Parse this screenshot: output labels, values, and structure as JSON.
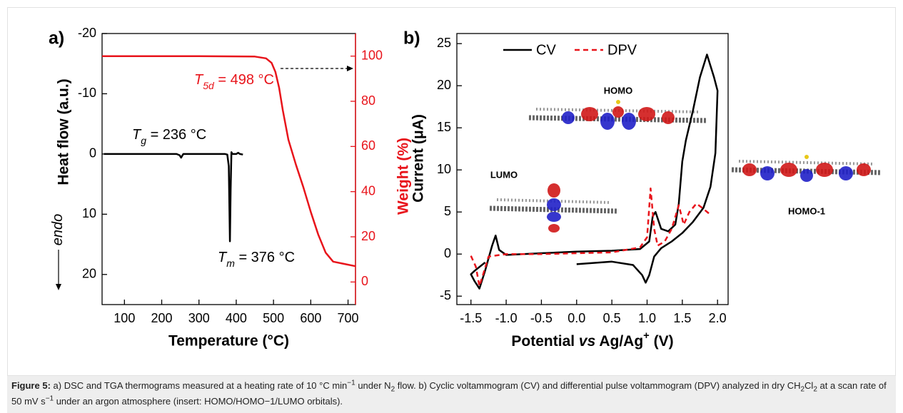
{
  "chart_data": [
    {
      "type": "line",
      "panel": "a)",
      "x_label": "Temperature (°C)",
      "y_label": "Heat flow (a.u.)",
      "y2_label": "Weight (%)",
      "y2_color": "#e8141b",
      "xlim": [
        40,
        720
      ],
      "xticks": [
        100,
        200,
        300,
        400,
        500,
        600,
        700
      ],
      "ylim": [
        25,
        -20
      ],
      "yticks": [
        -20,
        -10,
        0,
        10,
        20
      ],
      "y2lim": [
        -10,
        110
      ],
      "y2ticks": [
        0,
        20,
        40,
        60,
        80,
        100
      ],
      "series": [
        {
          "color": "#000000",
          "x": [
            45,
            100,
            150,
            200,
            240,
            248,
            252,
            258,
            300,
            350,
            370,
            376,
            380,
            383,
            385,
            387,
            390,
            400,
            405,
            410,
            418
          ],
          "values": [
            0,
            0,
            0,
            0,
            0,
            0.2,
            0.6,
            0,
            0,
            0,
            0,
            0.1,
            2,
            14.5,
            6,
            -0.3,
            0,
            0,
            -0.2,
            0,
            0.1
          ]
        },
        {
          "color": "#e8141b",
          "axis": "y2",
          "x": [
            40,
            300,
            450,
            480,
            495,
            505,
            515,
            525,
            540,
            560,
            580,
            600,
            620,
            640,
            660,
            690,
            720
          ],
          "values": [
            100,
            100,
            99.8,
            99,
            97,
            93,
            86,
            76,
            63,
            52,
            42,
            31,
            21,
            13,
            9,
            8,
            7
          ]
        }
      ],
      "annotations": [
        {
          "color": "#e8141b",
          "parts": [
            {
              "text": "T",
              "style": "i"
            },
            {
              "text": "5d",
              "style": "sub-i"
            },
            {
              "text": " = 498 °C"
            }
          ]
        },
        {
          "color": "#000000",
          "parts": [
            {
              "text": "T",
              "style": "i"
            },
            {
              "text": "g",
              "style": "sub-i"
            },
            {
              "text": " = 236 °C"
            }
          ]
        },
        {
          "color": "#000000",
          "parts": [
            {
              "text": "T",
              "style": "i"
            },
            {
              "text": "m",
              "style": "sub-i"
            },
            {
              "text": " = 376 °C"
            }
          ]
        },
        {
          "color": "#000000",
          "parts": [
            {
              "text": "endo",
              "style": "i"
            }
          ]
        }
      ]
    },
    {
      "type": "line",
      "panel": "b)",
      "x_label": [
        {
          "text": "Potential "
        },
        {
          "text": "vs",
          "style": "i"
        },
        {
          "text": " Ag/Ag"
        },
        {
          "text": "+",
          "style": "sup"
        },
        {
          "text": " (V)"
        }
      ],
      "y_label": "Current (μA)",
      "xlim": [
        -1.7,
        2.15
      ],
      "xticks": [
        -1.5,
        {
          "value": -1,
          "label": "-1.0"
        },
        -0.5,
        {
          "value": 0,
          "label": "0.0"
        },
        0.5,
        {
          "value": 1,
          "label": "1.0"
        },
        1.5,
        {
          "value": 2,
          "label": "2.0"
        }
      ],
      "ylim": [
        -6,
        26.2
      ],
      "yticks": [
        -5,
        0,
        5,
        10,
        15,
        20,
        25
      ],
      "legend": "upper left",
      "series": [
        {
          "name": "CV",
          "color": "#000000",
          "dash": "solid",
          "x": [
            0,
            0.5,
            0.8,
            0.93,
            0.98,
            1.03,
            1.1,
            1.2,
            1.35,
            1.5,
            1.65,
            1.8,
            1.9,
            1.97,
            2.0,
            1.95,
            1.85,
            1.75,
            1.65,
            1.55,
            1.5,
            1.45,
            1.4,
            1.3,
            1.2,
            1.12,
            1.08,
            1.03,
            0.9,
            0.5,
            0,
            -0.5,
            -1.0,
            -1.1,
            -1.15,
            -1.2,
            -1.25,
            -1.3,
            -1.38,
            -1.45,
            -1.5,
            -1.45,
            -1.3
          ],
          "values": [
            -1.2,
            -0.9,
            -1.3,
            -2.5,
            -3.4,
            -2.5,
            -0.3,
            0.7,
            1.5,
            2.5,
            3.8,
            5.5,
            8,
            12,
            19.4,
            21,
            23.7,
            21,
            17,
            13.5,
            11,
            6,
            3.5,
            2.7,
            3,
            5,
            4.5,
            1.5,
            0.6,
            0.4,
            0.3,
            0.1,
            -0.1,
            0.5,
            2.2,
            1,
            -0.5,
            -2,
            -4.1,
            -3.2,
            -2.4,
            -2,
            -1
          ]
        },
        {
          "name": "DPV",
          "color": "#e8141b",
          "dash": "dashed",
          "x": [
            -1.5,
            -1.43,
            -1.38,
            -1.33,
            -1.25,
            -1.0,
            -0.5,
            0,
            0.5,
            0.9,
            1.0,
            1.05,
            1.1,
            1.15,
            1.25,
            1.35,
            1.45,
            1.52,
            1.6,
            1.7,
            1.78,
            1.88
          ],
          "values": [
            -0.2,
            -1.5,
            -3.8,
            -2.5,
            -0.3,
            0,
            0,
            0.1,
            0.2,
            0.8,
            2,
            7.8,
            3,
            1,
            1.5,
            3,
            5.8,
            3.5,
            5,
            6,
            5.5,
            4.8
          ]
        }
      ],
      "annotations": [
        {
          "text": "HOMO"
        },
        {
          "text": "LUMO"
        },
        {
          "text": "HOMO-1"
        }
      ]
    }
  ],
  "caption": {
    "parts": [
      {
        "text": "Figure 5:",
        "style": "b"
      },
      {
        "text": " a) DSC and TGA thermograms measured at a heating rate of 10 °C min"
      },
      {
        "text": "−1",
        "style": "sup"
      },
      {
        "text": " under N"
      },
      {
        "text": "2",
        "style": "sub"
      },
      {
        "text": " flow. b) Cyclic voltammogram (CV) and differential pulse voltammogram (DPV) analyzed in dry CH"
      },
      {
        "text": "2",
        "style": "sub"
      },
      {
        "text": "Cl"
      },
      {
        "text": "2",
        "style": "sub"
      },
      {
        "text": " at a scan rate of 50 mV s"
      },
      {
        "text": "−1",
        "style": "sup"
      },
      {
        "text": " under an argon atmosphere (insert: HOMO/HOMO−1/LUMO orbitals)."
      }
    ]
  }
}
